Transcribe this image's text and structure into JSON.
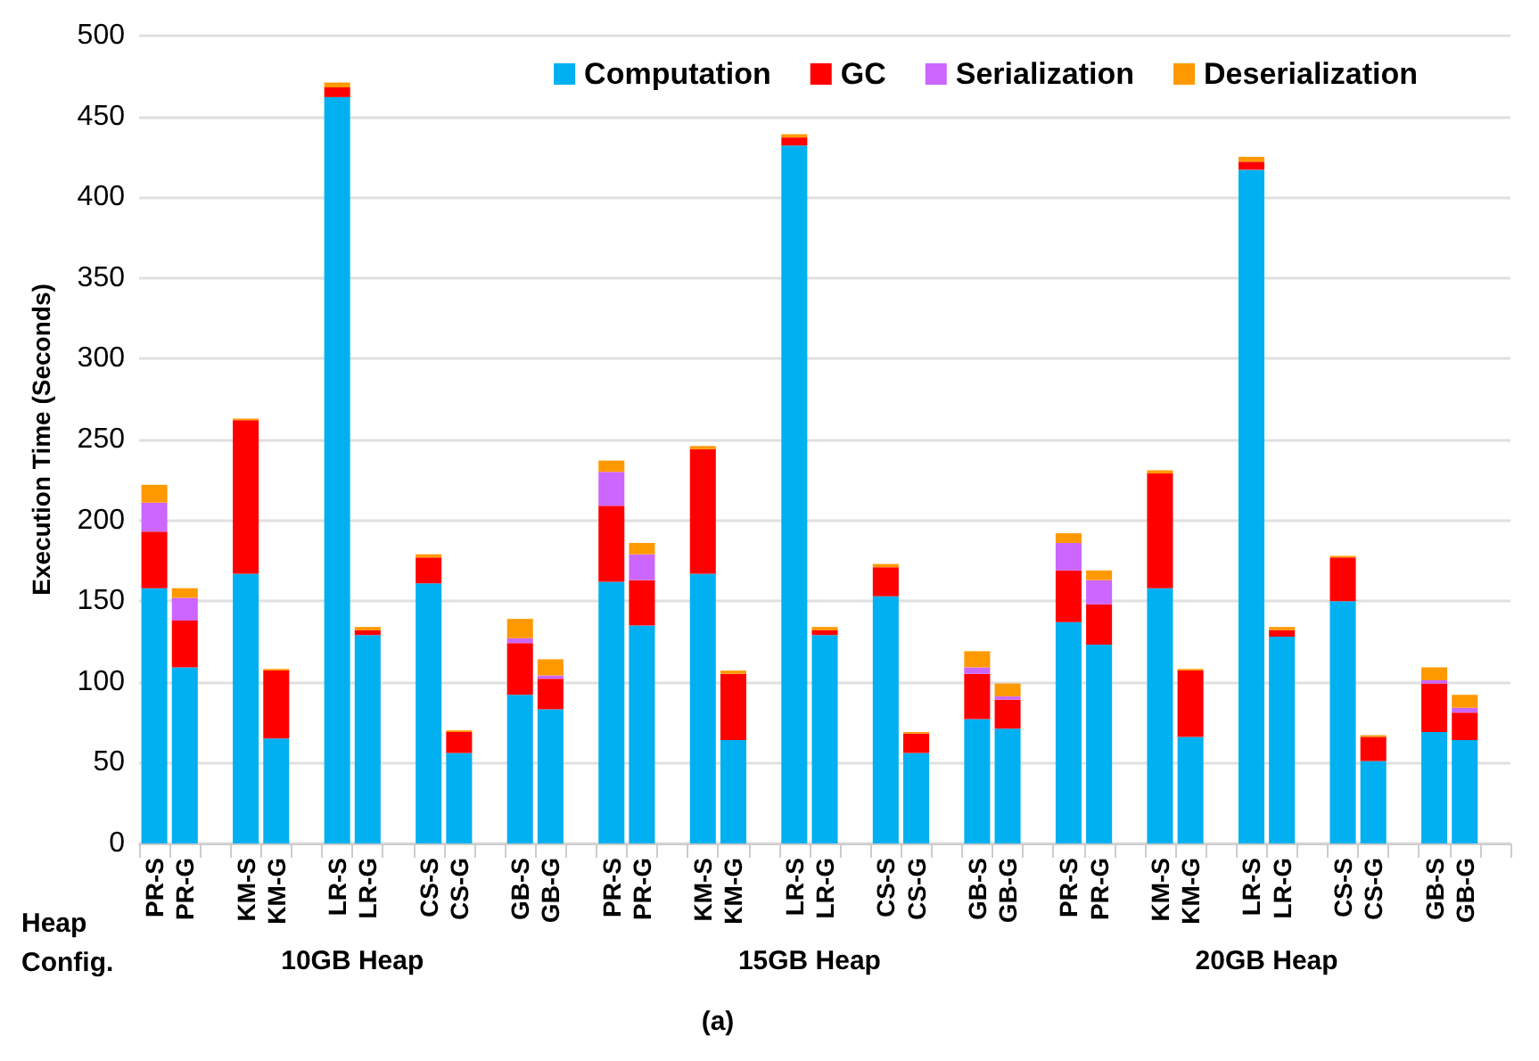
{
  "chart_data": {
    "type": "bar",
    "stacked": true,
    "ylabel": "Execution Time (Seconds)",
    "xlabel": "Heap Config.",
    "categories": [
      "PR-S",
      "PR-G",
      null,
      "KM-S",
      "KM-G",
      null,
      "LR-S",
      "LR-G",
      null,
      "CS-S",
      "CS-G",
      null,
      "GB-S",
      "GB-G",
      null,
      "PR-S",
      "PR-G",
      null,
      "KM-S",
      "KM-G",
      null,
      "LR-S",
      "LR-G",
      null,
      "CS-S",
      "CS-G",
      null,
      "GB-S",
      "GB-G",
      null,
      "PR-S",
      "PR-G",
      null,
      "KM-S",
      "KM-G",
      null,
      "LR-S",
      "LR-G",
      null,
      "CS-S",
      "CS-G",
      null,
      "GB-S",
      "GB-G",
      null
    ],
    "series": [
      {
        "name": "Computation",
        "color": "#00b0f0",
        "values": [
          158,
          109,
          null,
          167,
          65,
          null,
          462,
          129,
          null,
          161,
          56,
          null,
          92,
          83,
          null,
          162,
          135,
          null,
          167,
          64,
          null,
          432,
          129,
          null,
          153,
          56,
          null,
          77,
          71,
          null,
          137,
          123,
          null,
          158,
          66,
          null,
          417,
          128,
          null,
          150,
          51,
          null,
          69,
          64,
          null
        ]
      },
      {
        "name": "GC",
        "color": "#ff0000",
        "values": [
          35,
          29,
          null,
          95,
          42,
          null,
          6,
          3,
          null,
          16,
          13,
          null,
          32,
          19,
          null,
          47,
          28,
          null,
          77,
          41,
          null,
          5,
          3,
          null,
          18,
          12,
          null,
          28,
          18,
          null,
          32,
          25,
          null,
          71,
          41,
          null,
          5,
          4,
          null,
          27,
          15,
          null,
          30,
          17,
          null
        ]
      },
      {
        "name": "Serialization",
        "color": "#cc66ff",
        "values": [
          18,
          14,
          null,
          0,
          0,
          null,
          0,
          0,
          null,
          0,
          0,
          null,
          3,
          2,
          null,
          21,
          16,
          null,
          0,
          0,
          null,
          0,
          0,
          null,
          0,
          0,
          null,
          4,
          2,
          null,
          17,
          15,
          null,
          0,
          0,
          null,
          0,
          0,
          null,
          0,
          0,
          null,
          2,
          3,
          null
        ]
      },
      {
        "name": "Deserialization",
        "color": "#ff9900",
        "values": [
          11,
          6,
          null,
          1,
          1,
          null,
          3,
          2,
          null,
          2,
          1,
          null,
          12,
          10,
          null,
          7,
          7,
          null,
          2,
          2,
          null,
          2,
          2,
          null,
          2,
          1,
          null,
          10,
          8,
          null,
          6,
          6,
          null,
          2,
          1,
          null,
          3,
          2,
          null,
          1,
          1,
          null,
          8,
          8,
          null
        ]
      }
    ],
    "ylim": [
      0,
      500
    ],
    "yticks": [
      0,
      50,
      100,
      150,
      200,
      250,
      300,
      350,
      400,
      450,
      500
    ],
    "grid": "y",
    "legend": "top right",
    "annotations": [
      "10GB Heap",
      "15GB Heap",
      "20GB Heap",
      "(a)"
    ]
  }
}
